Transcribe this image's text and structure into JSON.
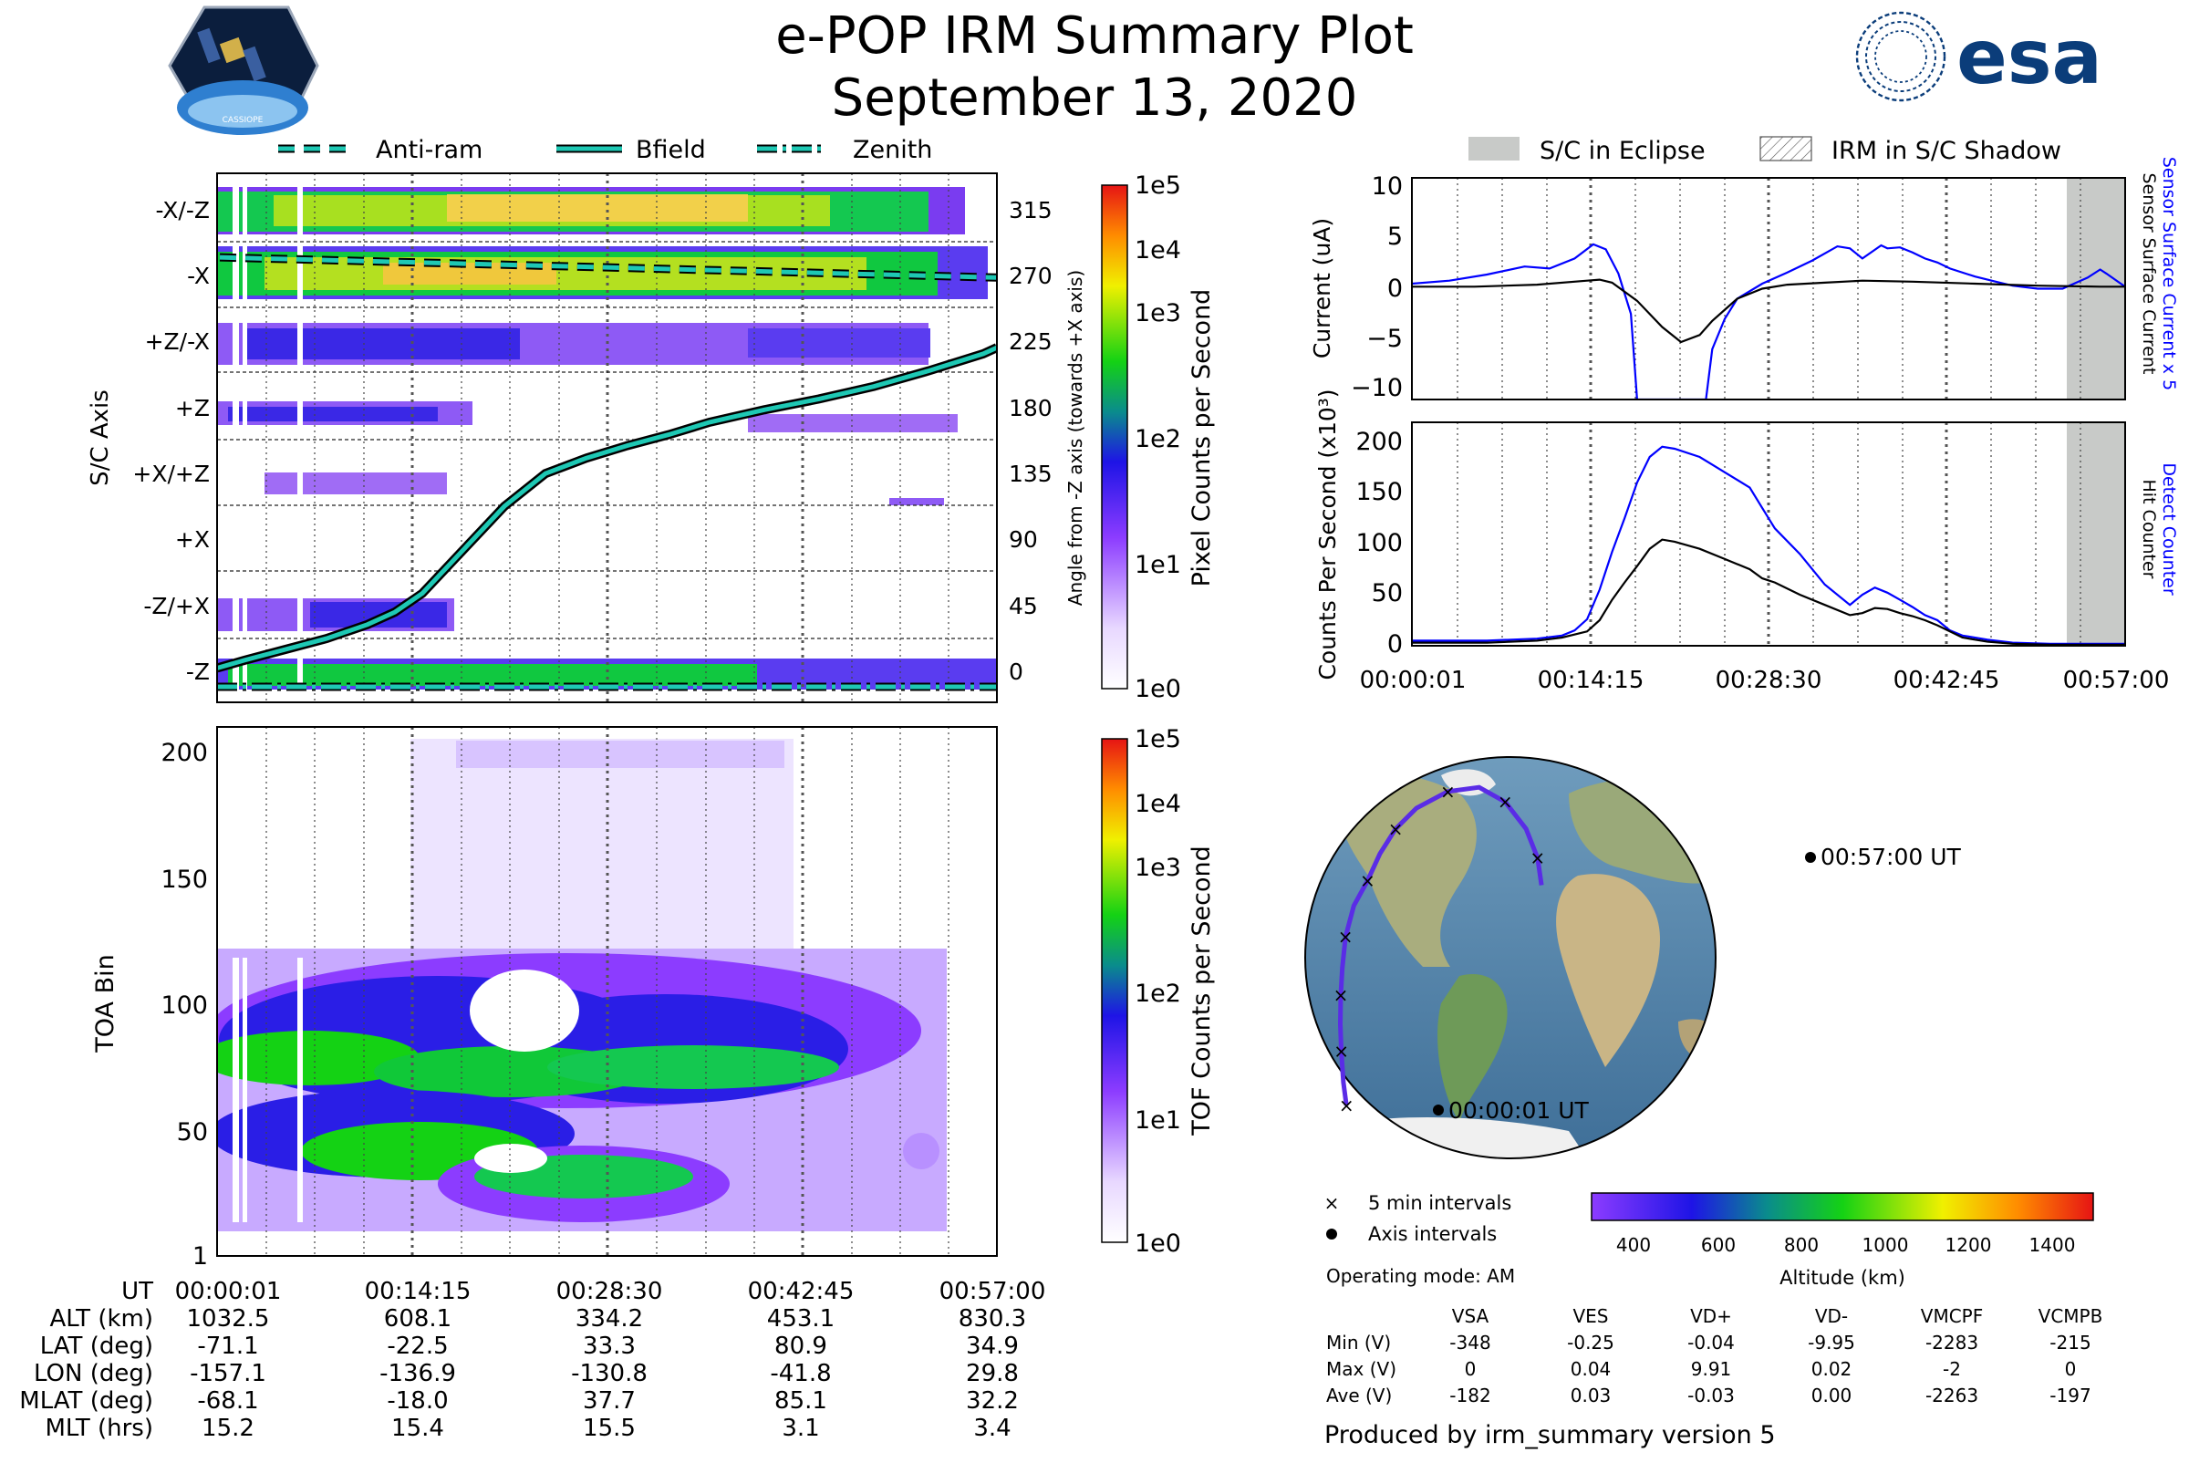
{
  "title": "e-POP IRM Summary Plot",
  "subtitle": "September 13, 2020",
  "logos": {
    "cassiope": "CASSIOPE",
    "esa": "esa"
  },
  "colors": {
    "teal": "#1ec8b4",
    "blue": "#0000ff",
    "eclipse": "#c8cac8"
  },
  "chart_data": [
    {
      "id": "angle",
      "type": "heatmap",
      "legend": [
        "Anti-ram",
        "Bfield",
        "Zenith"
      ],
      "ylabel": "S/C Axis",
      "y2label": "Angle from -Z axis (towards +X axis)",
      "axis_labels": [
        "-X/-Z",
        "-X",
        "+Z/-X",
        "+Z",
        "+X/+Z",
        "+X",
        "-Z/+X",
        "-Z"
      ],
      "right_ticks": [
        "315",
        "270",
        "225",
        "180",
        "135",
        "90",
        "45",
        "0"
      ],
      "colorbar_label": "Pixel Counts per Second",
      "colorbar_ticks": [
        "1e5",
        "1e4",
        "1e3",
        "1e2",
        "1e1",
        "1e0"
      ],
      "xlim": [
        0,
        57
      ],
      "ylim": [
        -10,
        330
      ],
      "bfield": {
        "x": [
          0,
          2,
          5,
          8,
          11,
          13,
          15,
          18,
          21,
          24,
          27,
          30,
          33,
          36,
          40,
          44,
          48,
          52,
          56,
          57
        ],
        "y": [
          12,
          17,
          24,
          31,
          40,
          48,
          60,
          88,
          116,
          137,
          147,
          155,
          162,
          170,
          178,
          185,
          193,
          203,
          214,
          218
        ]
      },
      "antiram": 268,
      "zenith": 0
    },
    {
      "id": "toa",
      "type": "heatmap",
      "ylabel": "TOA Bin",
      "yticks": [
        "200",
        "150",
        "100",
        "50",
        "1"
      ],
      "colorbar_label": "TOF Counts per Second",
      "colorbar_ticks": [
        "1e5",
        "1e4",
        "1e3",
        "1e2",
        "1e1",
        "1e0"
      ],
      "ylim": [
        1,
        210
      ],
      "xlim": [
        0,
        57
      ]
    },
    {
      "id": "current",
      "type": "line",
      "legend": [
        "S/C in Eclipse",
        "IRM in S/C Shadow"
      ],
      "ylabel": "Current (uA)",
      "y2label_blue": "Sensor Surface Current x 5",
      "y2label_black": "Sensor Surface Current",
      "yticks": [
        "10",
        "5",
        "0",
        "−5",
        "−10"
      ],
      "ylim": [
        -11,
        11
      ],
      "xlim": [
        0,
        57
      ],
      "eclipse_start": 53,
      "series": [
        {
          "name": "Sensor Surface Current x 5",
          "x": [
            0,
            3,
            6,
            9,
            11,
            13,
            14.5,
            15.5,
            16.5,
            17.5,
            18,
            23.5,
            24,
            25,
            26,
            28,
            30,
            32,
            34,
            35,
            36,
            37.5,
            38,
            39,
            40,
            41,
            42,
            43,
            45,
            47,
            48,
            50,
            52,
            54,
            55,
            55.5,
            57
          ],
          "y": [
            0.5,
            0.8,
            1.4,
            2.2,
            2.0,
            3.0,
            4.4,
            3.9,
            1.5,
            -2.5,
            -11,
            -11,
            -6,
            -3,
            -1,
            0.5,
            1.6,
            2.8,
            4.2,
            4.0,
            3.0,
            4.3,
            4.0,
            4.1,
            3.6,
            3.0,
            2.6,
            2.0,
            1.2,
            0.6,
            0.3,
            0.0,
            0.0,
            1.1,
            1.9,
            1.5,
            0.2
          ]
        },
        {
          "name": "Sensor Surface Current",
          "x": [
            0,
            5,
            10,
            14,
            15,
            16,
            18,
            20,
            21.5,
            23,
            24,
            26,
            28,
            30,
            33,
            36,
            40,
            45,
            50,
            55,
            57
          ],
          "y": [
            0.2,
            0.2,
            0.4,
            0.8,
            0.9,
            0.6,
            -1.2,
            -3.8,
            -5.3,
            -4.6,
            -3.2,
            -1.0,
            0.0,
            0.4,
            0.6,
            0.8,
            0.7,
            0.5,
            0.3,
            0.2,
            0.2
          ]
        }
      ]
    },
    {
      "id": "counts",
      "type": "line",
      "ylabel": "Counts Per Second (x10³)",
      "y2label_blue": "Detect Counter",
      "y2label_black": "Hit Counter",
      "yticks": [
        "200",
        "150",
        "100",
        "50",
        "0"
      ],
      "ylim": [
        0,
        210
      ],
      "xlim": [
        0,
        57
      ],
      "xtick_labels": [
        "00:00:01",
        "00:14:15",
        "00:28:30",
        "00:42:45",
        "00:57:00"
      ],
      "series": [
        {
          "name": "Detect Counter",
          "x": [
            0,
            6,
            10,
            12,
            13,
            14,
            15,
            16,
            17,
            18,
            19,
            20,
            21,
            23,
            25,
            27,
            28,
            29,
            31,
            33,
            35,
            36,
            37,
            38,
            39,
            40,
            41,
            42,
            43,
            44,
            46,
            48,
            51,
            54,
            57
          ],
          "y": [
            5,
            5,
            7,
            10,
            15,
            26,
            55,
            92,
            125,
            160,
            185,
            195,
            193,
            185,
            170,
            155,
            135,
            115,
            90,
            60,
            40,
            50,
            57,
            52,
            45,
            38,
            30,
            25,
            15,
            10,
            6,
            3,
            2,
            2,
            2
          ]
        },
        {
          "name": "Hit Counter",
          "x": [
            0,
            6,
            10,
            12,
            14,
            15,
            16,
            17,
            18,
            19,
            20,
            21,
            23,
            25,
            27,
            28,
            29,
            31,
            33,
            35,
            36,
            37,
            38,
            39,
            40,
            41,
            42,
            43,
            44,
            46,
            48,
            51,
            54,
            57
          ],
          "y": [
            3,
            3,
            5,
            8,
            14,
            25,
            45,
            62,
            78,
            95,
            104,
            102,
            95,
            85,
            75,
            66,
            62,
            50,
            40,
            30,
            32,
            37,
            36,
            32,
            29,
            25,
            20,
            14,
            8,
            4,
            2,
            1,
            1,
            1
          ]
        }
      ]
    },
    {
      "id": "map",
      "type": "scatter",
      "annotations": [
        "00:57:00 UT",
        "00:00:01 UT"
      ],
      "legend": [
        "5 min intervals",
        "Axis intervals"
      ],
      "colorbar_label": "Altitude (km)",
      "colorbar_ticks": [
        "400",
        "600",
        "800",
        "1000",
        "1200",
        "1400"
      ],
      "track": {
        "lon": [
          -157.1,
          -160,
          -162,
          -163,
          -162.5,
          -161,
          -158,
          -150,
          -136.9,
          -125,
          -110,
          -90,
          -60,
          -30,
          -5,
          15,
          26,
          29.8
        ],
        "lat": [
          -71.1,
          -60,
          -45,
          -32,
          -18,
          -5,
          10,
          25,
          37,
          50,
          62,
          72,
          80,
          82,
          75,
          62,
          48,
          34.9
        ]
      }
    }
  ],
  "summary_table": {
    "ut_label": "UT",
    "rows": [
      {
        "label": "ALT (km)",
        "values": [
          "1032.5",
          "608.1",
          "334.2",
          "453.1",
          "830.3"
        ]
      },
      {
        "label": "LAT (deg)",
        "values": [
          "-71.1",
          "-22.5",
          "33.3",
          "80.9",
          "34.9"
        ]
      },
      {
        "label": "LON (deg)",
        "values": [
          "-157.1",
          "-136.9",
          "-130.8",
          "-41.8",
          "29.8"
        ]
      },
      {
        "label": "MLAT (deg)",
        "values": [
          "-68.1",
          "-18.0",
          "37.7",
          "85.1",
          "32.2"
        ]
      },
      {
        "label": "MLT (hrs)",
        "values": [
          "15.2",
          "15.4",
          "15.5",
          "3.1",
          "3.4"
        ]
      }
    ]
  },
  "operating_mode": "Operating mode: AM",
  "voltage_table": {
    "columns": [
      "VSA",
      "VES",
      "VD+",
      "VD-",
      "VMCPF",
      "VCMPB"
    ],
    "rows": [
      {
        "label": "Min (V)",
        "values": [
          "-348",
          "-0.25",
          "-0.04",
          "-9.95",
          "-2283",
          "-215"
        ]
      },
      {
        "label": "Max (V)",
        "values": [
          "0",
          "0.04",
          "9.91",
          "0.02",
          "-2",
          "0"
        ]
      },
      {
        "label": "Ave (V)",
        "values": [
          "-182",
          "0.03",
          "-0.03",
          "0.00",
          "-2263",
          "-197"
        ]
      }
    ]
  },
  "footer": "Produced by irm_summary version 5"
}
